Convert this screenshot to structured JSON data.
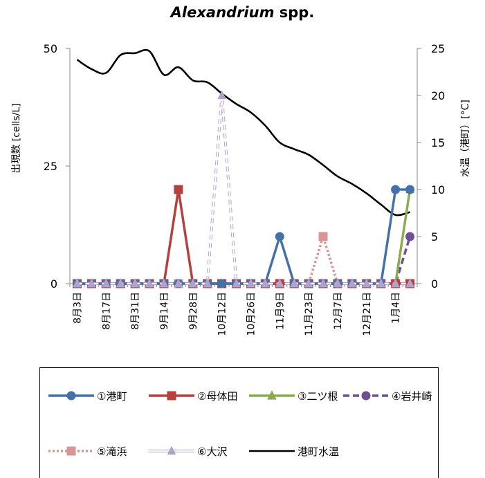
{
  "chart_data": {
    "type": "line",
    "title_italic": "Alexandrium",
    "title_rest": " spp.",
    "ylabel_left": "出現数 [cells/L]",
    "ylabel_right": "水温（港町）[°C]",
    "ylim_left": [
      0,
      50
    ],
    "ylim_right": [
      0,
      25
    ],
    "yticks_left": [
      0,
      25,
      50
    ],
    "yticks_right": [
      0,
      5,
      10,
      15,
      20,
      25
    ],
    "n_points": 24,
    "x_labels": [
      {
        "i": 0,
        "text": "8月3日"
      },
      {
        "i": 2,
        "text": "8月17日"
      },
      {
        "i": 4,
        "text": "8月31日"
      },
      {
        "i": 6,
        "text": "9月14日"
      },
      {
        "i": 8,
        "text": "9月28日"
      },
      {
        "i": 10,
        "text": "10月12日"
      },
      {
        "i": 12,
        "text": "10月26日"
      },
      {
        "i": 14,
        "text": "11月9日"
      },
      {
        "i": 16,
        "text": "11月23日"
      },
      {
        "i": 18,
        "text": "12月7日"
      },
      {
        "i": 20,
        "text": "12月21日"
      },
      {
        "i": 22,
        "text": "1月4日"
      }
    ],
    "series": [
      {
        "name": "①港町",
        "color": "#4472a8",
        "marker": "circle",
        "dash": "",
        "axis": "left",
        "values": [
          0,
          0,
          0,
          0,
          0,
          0,
          0,
          0,
          0,
          0,
          0,
          0,
          0,
          0,
          10,
          0,
          0,
          0,
          0,
          0,
          0,
          0,
          20,
          20
        ]
      },
      {
        "name": "②母体田",
        "color": "#b5413f",
        "marker": "square",
        "dash": "",
        "axis": "left",
        "values": [
          0,
          0,
          0,
          0,
          0,
          0,
          0,
          20,
          0,
          0,
          0,
          0,
          0,
          0,
          0,
          0,
          0,
          0,
          0,
          0,
          0,
          0,
          0,
          0
        ]
      },
      {
        "name": "③二ツ根",
        "color": "#8bac4e",
        "marker": "triangle",
        "dash": "",
        "axis": "left",
        "values": [
          0,
          0,
          0,
          0,
          0,
          0,
          0,
          0,
          0,
          0,
          0,
          0,
          0,
          0,
          0,
          0,
          0,
          0,
          0,
          0,
          0,
          0,
          0,
          20
        ]
      },
      {
        "name": "④岩井崎",
        "color": "#6d4f93",
        "marker": "circle",
        "dash": "9,5",
        "axis": "left",
        "values": [
          0,
          0,
          0,
          0,
          0,
          0,
          0,
          0,
          0,
          0,
          0,
          0,
          0,
          0,
          0,
          0,
          0,
          0,
          0,
          0,
          0,
          0,
          0,
          10
        ]
      },
      {
        "name": "⑤滝浜",
        "color": "#d99594",
        "marker": "square",
        "dash": "3,3",
        "axis": "left",
        "values": [
          0,
          0,
          0,
          0,
          0,
          0,
          0,
          0,
          0,
          0,
          0,
          0,
          0,
          0,
          0,
          0,
          0,
          10,
          0,
          0,
          0,
          0,
          0,
          0
        ]
      },
      {
        "name": "⑥大沢",
        "color": "#b3a2c7",
        "marker": "triangle",
        "dash": "",
        "axis": "left",
        "hollow": true,
        "values": [
          0,
          0,
          0,
          0,
          0,
          0,
          0,
          0,
          0,
          0,
          40,
          0,
          0,
          0,
          0,
          0,
          0,
          0,
          0,
          0,
          0,
          0,
          0,
          0
        ]
      },
      {
        "name": "港町水温",
        "color": "#000000",
        "marker": "none",
        "dash": "",
        "axis": "right",
        "values": [
          23.8,
          22.8,
          22.4,
          24.3,
          24.5,
          24.7,
          22.2,
          23.0,
          21.6,
          21.4,
          20.2,
          19.1,
          18.2,
          16.8,
          15.0,
          14.3,
          13.7,
          12.6,
          11.4,
          10.6,
          9.6,
          8.4,
          7.3,
          7.6
        ]
      }
    ],
    "legend_placement": "bottom",
    "grid": false
  }
}
